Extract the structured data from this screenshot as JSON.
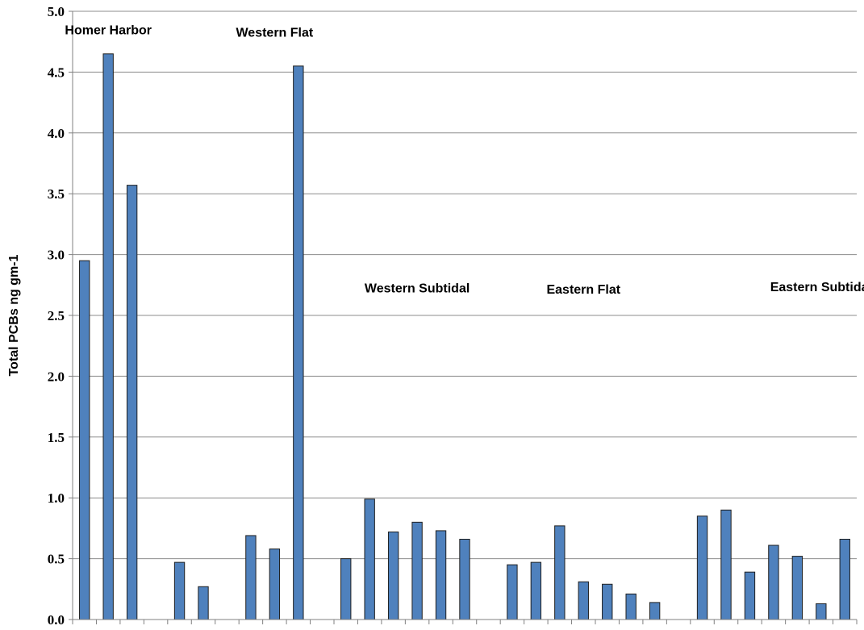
{
  "chart_data": {
    "type": "bar",
    "title": "",
    "xlabel": "",
    "ylabel": "Total PCBs  ng gm-1",
    "ylim": [
      0,
      5.0
    ],
    "yticks": [
      "0.0",
      "0.5",
      "1.0",
      "1.5",
      "2.0",
      "2.5",
      "3.0",
      "3.5",
      "4.0",
      "4.5",
      "5.0"
    ],
    "grid": true,
    "legend": "none",
    "bar_color": "#4F81BD",
    "bar_edge_color": "#1F1F1F",
    "values": [
      2.95,
      4.65,
      3.57,
      null,
      0.47,
      0.27,
      null,
      0.69,
      0.58,
      4.55,
      null,
      0.5,
      0.99,
      0.72,
      0.8,
      0.73,
      0.66,
      null,
      0.45,
      0.47,
      0.77,
      0.31,
      0.29,
      0.21,
      0.14,
      null,
      0.85,
      0.9,
      0.39,
      0.61,
      0.52,
      0.13,
      0.66
    ],
    "annotations": [
      {
        "text": "Homer Harbor",
        "at_slot": 1,
        "y": 4.85
      },
      {
        "text": "Western Flat",
        "at_slot": 8,
        "y": 4.83
      },
      {
        "text": "Western Subtidal",
        "at_slot": 14,
        "y": 2.73
      },
      {
        "text": "Eastern Flat",
        "at_slot": 21,
        "y": 2.72
      },
      {
        "text": "Eastern Subtidal",
        "at_slot": 31,
        "y": 2.74
      }
    ]
  }
}
